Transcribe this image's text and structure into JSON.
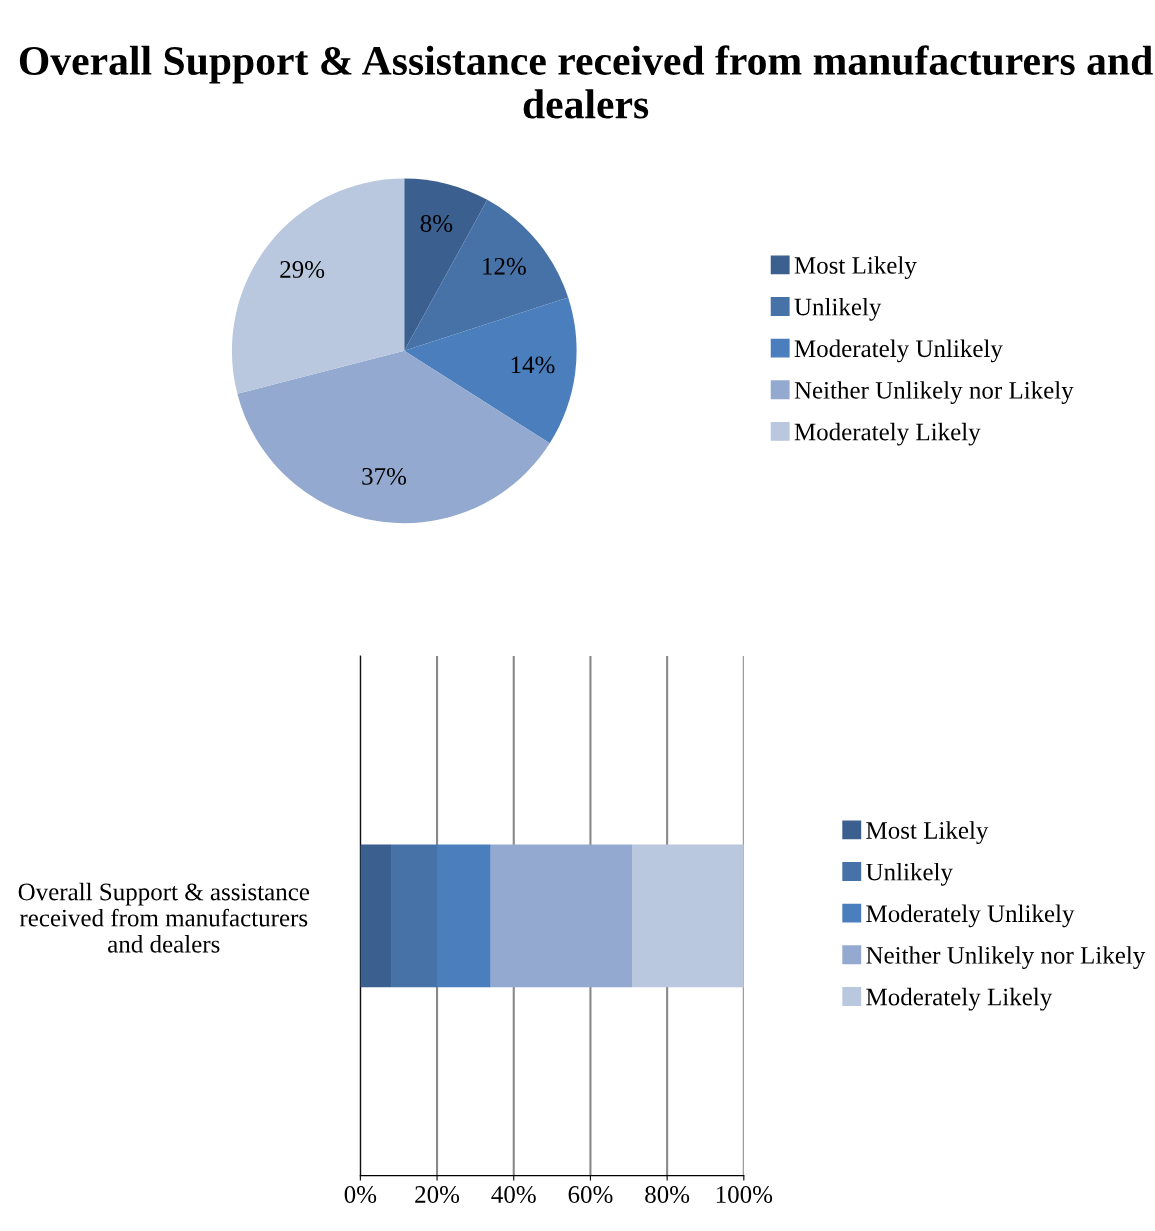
{
  "chart_data": [
    {
      "type": "pie",
      "title": "Overall Support & Assistance received from manufacturers and dealers",
      "categories": [
        "Most Likely",
        "Unlikely",
        "Moderately Unlikely",
        "Neither Unlikely nor Likely",
        "Moderately Likely"
      ],
      "values": [
        8,
        12,
        14,
        37,
        29
      ],
      "colors": [
        "#3b5f8f",
        "#4672a8",
        "#4a7ebd",
        "#94a9cf",
        "#b9c8de"
      ],
      "value_labels": [
        "8%",
        "12%",
        "14%",
        "37%",
        "29%"
      ],
      "legend": "right"
    },
    {
      "type": "bar",
      "orientation": "horizontal",
      "stacked": true,
      "categories": [
        "Overall Support & assistance received from manufacturers and dealers"
      ],
      "series": [
        {
          "name": "Most Likely",
          "color": "#3b5f8f",
          "values": [
            8
          ]
        },
        {
          "name": "Unlikely",
          "color": "#4672a8",
          "values": [
            12
          ]
        },
        {
          "name": "Moderately Unlikely",
          "color": "#4a7ebd",
          "values": [
            14
          ]
        },
        {
          "name": "Neither Unlikely nor Likely",
          "color": "#94a9cf",
          "values": [
            37
          ]
        },
        {
          "name": "Moderately Likely",
          "color": "#b9c8de",
          "values": [
            29
          ]
        }
      ],
      "xlim": [
        0,
        100
      ],
      "xticks": [
        {
          "value": 0,
          "label": "0%"
        },
        {
          "value": 20,
          "label": "20%"
        },
        {
          "value": 40,
          "label": "40%"
        },
        {
          "value": 60,
          "label": "60%"
        },
        {
          "value": 80,
          "label": "80%"
        },
        {
          "value": 100,
          "label": "100%"
        }
      ],
      "grid": "x",
      "legend": "right"
    }
  ]
}
